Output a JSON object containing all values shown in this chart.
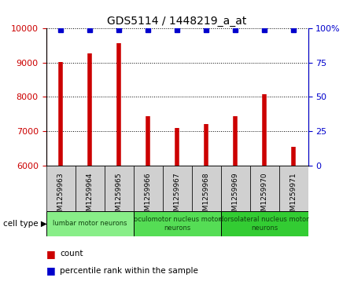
{
  "title": "GDS5114 / 1448219_a_at",
  "samples": [
    "GSM1259963",
    "GSM1259964",
    "GSM1259965",
    "GSM1259966",
    "GSM1259967",
    "GSM1259968",
    "GSM1259969",
    "GSM1259970",
    "GSM1259971"
  ],
  "counts": [
    9030,
    9270,
    9580,
    7430,
    7100,
    7200,
    7440,
    8080,
    6550
  ],
  "ylim_left": [
    6000,
    10000
  ],
  "ylim_right": [
    0,
    100
  ],
  "yticks_left": [
    6000,
    7000,
    8000,
    9000,
    10000
  ],
  "yticks_right": [
    0,
    25,
    50,
    75,
    100
  ],
  "percentile_value": 99,
  "bar_color": "#cc0000",
  "dot_color": "#0000cc",
  "sample_box_color": "#d0d0d0",
  "cell_types": [
    {
      "label": "lumbar motor neurons",
      "start": 0,
      "end": 3,
      "color": "#88ee88"
    },
    {
      "label": "oculomotor nucleus motor\nneurons",
      "start": 3,
      "end": 6,
      "color": "#55dd55"
    },
    {
      "label": "dorsolateral nucleus motor\nneurons",
      "start": 6,
      "end": 9,
      "color": "#33cc33"
    }
  ],
  "cell_type_label": "cell type",
  "legend_count_label": "count",
  "legend_percentile_label": "percentile rank within the sample"
}
